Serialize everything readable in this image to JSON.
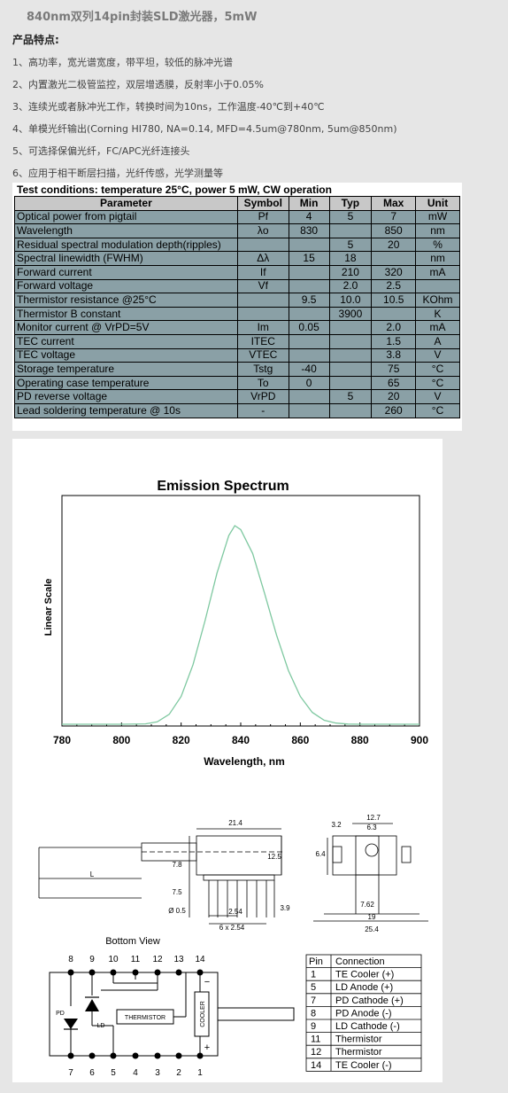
{
  "title": "840nm双列14pin封装SLD激光器，5mW",
  "features_heading": "产品特点:",
  "features": [
    "1、高功率，宽光谱宽度，带平坦，较低的脉冲光谱",
    "2、内置激光二极管监控，双层增透膜，反射率小于0.05%",
    "3、连续光或者脉冲光工作，转换时间为10ns，工作温度-40℃到+40℃",
    "4、单模光纤输出(Corning HI780, NA=0.14, MFD=4.5um@780nm, 5um@850nm)",
    "5、可选择保偏光纤，FC/APC光纤连接头",
    "6、应用于相干断层扫描，光纤传感，光学测量等"
  ],
  "spec_table": {
    "caption": "Test conditions: temperature 25°C, power 5 mW, CW operation",
    "headers": [
      "Parameter",
      "Symbol",
      "Min",
      "Typ",
      "Max",
      "Unit"
    ],
    "rows": [
      {
        "param": "Optical power from pigtail",
        "symbol": "Pf",
        "min": "4",
        "typ": "5",
        "max": "7",
        "unit": "mW"
      },
      {
        "param": "Wavelength",
        "symbol": "λo",
        "min": "830",
        "typ": "",
        "max": "850",
        "unit": "nm"
      },
      {
        "param": "Residual spectral modulation depth(ripples)",
        "symbol": "",
        "min": "",
        "typ": "5",
        "max": "20",
        "unit": "%"
      },
      {
        "param": "Spectral linewidth (FWHM)",
        "symbol": "Δλ",
        "min": "15",
        "typ": "18",
        "max": "",
        "unit": "nm"
      },
      {
        "param": "Forward current",
        "symbol": "If",
        "min": "",
        "typ": "210",
        "max": "320",
        "unit": "mA"
      },
      {
        "param": "Forward voltage",
        "symbol": "Vf",
        "min": "",
        "typ": "2.0",
        "max": "2.5",
        "unit": ""
      },
      {
        "param": "Thermistor resistance @25°C",
        "symbol": "",
        "min": "9.5",
        "typ": "10.0",
        "max": "10.5",
        "unit": "KOhm"
      },
      {
        "param": "Thermistor B constant",
        "symbol": "",
        "min": "",
        "typ": "3900",
        "max": "",
        "unit": "K"
      },
      {
        "param": "Monitor current @ VrPD=5V",
        "symbol": "Im",
        "min": "0.05",
        "typ": "",
        "max": "2.0",
        "unit": "mA"
      },
      {
        "param": "TEC current",
        "symbol": "ITEC",
        "min": "",
        "typ": "",
        "max": "1.5",
        "unit": "A"
      },
      {
        "param": "TEC voltage",
        "symbol": "VTEC",
        "min": "",
        "typ": "",
        "max": "3.8",
        "unit": "V"
      },
      {
        "param": "Storage temperature",
        "symbol": "Tstg",
        "min": "-40",
        "typ": "",
        "max": "75",
        "unit": "°C"
      },
      {
        "param": "Operating case temperature",
        "symbol": "To",
        "min": "0",
        "typ": "",
        "max": "65",
        "unit": "°C"
      },
      {
        "param": "PD reverse voltage",
        "symbol": "VrPD",
        "min": "",
        "typ": "5",
        "max": "20",
        "unit": "V"
      },
      {
        "param": "Lead soldering temperature @ 10s",
        "symbol": "-",
        "min": "",
        "typ": "",
        "max": "260",
        "unit": "°C"
      }
    ]
  },
  "chart_data": {
    "type": "line",
    "title": "Emission Spectrum",
    "xlabel": "Wavelength, nm",
    "ylabel": "Linear Scale",
    "xlim": [
      780,
      900
    ],
    "xticks": [
      "780",
      "800",
      "820",
      "840",
      "860",
      "880",
      "900"
    ],
    "grid": false,
    "line_color": "#7ec8a0",
    "series": [
      {
        "x": [
          780,
          800,
          808,
          812,
          816,
          820,
          824,
          828,
          832,
          836,
          838,
          840,
          844,
          848,
          852,
          856,
          860,
          864,
          868,
          872,
          876,
          880,
          900
        ],
        "y": [
          0,
          0,
          0.002,
          0.012,
          0.05,
          0.14,
          0.3,
          0.52,
          0.76,
          0.95,
          1.0,
          0.98,
          0.86,
          0.66,
          0.45,
          0.27,
          0.14,
          0.06,
          0.02,
          0.006,
          0.001,
          0,
          0
        ]
      }
    ]
  },
  "mechanical": {
    "dims": {
      "d21_4": "21.4",
      "d12_5": "12.5",
      "d7_8": "7.8",
      "d7_5": "7.5",
      "dia": "Ø 0.5",
      "d2_54": "2.54",
      "d6x2_54": "6 x 2.54",
      "d3_9": "3.9",
      "L": "L",
      "d12_7": "12.7",
      "d3_2": "3.2",
      "d6_3": "6.3",
      "d6_4": "6.4",
      "d7_62": "7.62",
      "d19": "19",
      "d25_4": "25.4"
    },
    "bottom_view_label": "Bottom View",
    "pins_top": [
      "8",
      "9",
      "10",
      "11",
      "12",
      "13",
      "14"
    ],
    "pins_bottom": [
      "7",
      "6",
      "5",
      "4",
      "3",
      "2",
      "1"
    ],
    "labels": {
      "pd": "PD",
      "ld": "LD",
      "thermistor": "THERMISTOR",
      "cooler": "COOLER",
      "minus": "−",
      "plus": "+"
    }
  },
  "pin_table": {
    "headers": [
      "Pin",
      "Connection"
    ],
    "rows": [
      {
        "pin": "1",
        "connection": "TE Cooler (+)"
      },
      {
        "pin": "5",
        "connection": "LD Anode (+)"
      },
      {
        "pin": "7",
        "connection": "PD Cathode (+)"
      },
      {
        "pin": "8",
        "connection": "PD Anode (-)"
      },
      {
        "pin": "9",
        "connection": "LD Cathode (-)"
      },
      {
        "pin": "11",
        "connection": "Thermistor"
      },
      {
        "pin": "12",
        "connection": "Thermistor"
      },
      {
        "pin": "14",
        "connection": "TE Cooler (-)"
      }
    ]
  }
}
